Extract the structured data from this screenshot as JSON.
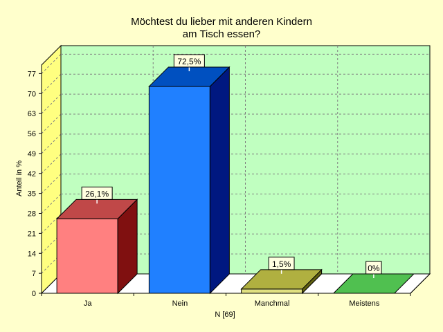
{
  "chart_data": {
    "type": "bar",
    "title_lines": [
      "Möchtest du lieber mit anderen Kindern",
      "am Tisch essen?"
    ],
    "xlabel": "N [69]",
    "ylabel": "Anteil in %",
    "categories": [
      "Ja",
      "Nein",
      "Manchmal",
      "Meistens"
    ],
    "values": [
      26.1,
      72.5,
      1.5,
      0
    ],
    "data_labels": [
      "26,1%",
      "72,5%",
      "1,5%",
      "0%"
    ],
    "ylim": [
      0,
      80
    ],
    "yticks": [
      0,
      7,
      14,
      21,
      28,
      35,
      42,
      49,
      56,
      63,
      70,
      77
    ],
    "grid": true,
    "colors": {
      "background": "#FFFFCC",
      "plot_back_wall": "#C0FFC0",
      "plot_side_wall": "#FFFF80",
      "floor": "#FFFFFF",
      "grid": "#808080",
      "bars": [
        {
          "front": "#FF8080",
          "top": "#C04848",
          "side": "#801010"
        },
        {
          "front": "#2080FF",
          "top": "#0050C0",
          "side": "#001880"
        },
        {
          "front": "#E0E080",
          "top": "#B0B040",
          "side": "#606010"
        },
        {
          "front": "#60D060",
          "top": "#50C050",
          "side": "#208020"
        }
      ]
    }
  }
}
